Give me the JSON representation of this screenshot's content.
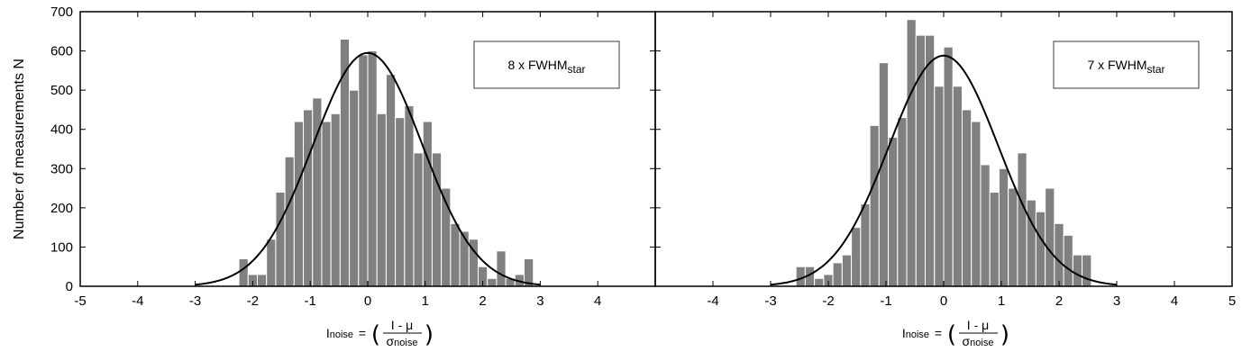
{
  "chart_data": [
    {
      "type": "bar",
      "panel": "left",
      "xlim": [
        -5,
        5
      ],
      "ylim": [
        0,
        700
      ],
      "x_ticks": [
        -5,
        -4,
        -3,
        -2,
        -1,
        0,
        1,
        2,
        3,
        4
      ],
      "y_ticks": [
        0,
        100,
        200,
        300,
        400,
        500,
        600,
        700
      ],
      "ylabel": "Number of measurements N",
      "xlabel": {
        "main": "I",
        "sub": "noise",
        "eq": "=",
        "num": "I - μ",
        "den_main": "σ",
        "den_sub": "noise"
      },
      "legend": {
        "text": "8 x FWHM",
        "sub": "star",
        "placement": "top-right"
      },
      "bin_width": 0.16,
      "bins": [
        {
          "x": -2.24,
          "y": 70
        },
        {
          "x": -2.08,
          "y": 30
        },
        {
          "x": -1.92,
          "y": 30
        },
        {
          "x": -1.76,
          "y": 120
        },
        {
          "x": -1.6,
          "y": 240
        },
        {
          "x": -1.44,
          "y": 330
        },
        {
          "x": -1.28,
          "y": 420
        },
        {
          "x": -1.12,
          "y": 450
        },
        {
          "x": -0.96,
          "y": 480
        },
        {
          "x": -0.8,
          "y": 420
        },
        {
          "x": -0.64,
          "y": 440
        },
        {
          "x": -0.48,
          "y": 630
        },
        {
          "x": -0.32,
          "y": 500
        },
        {
          "x": -0.16,
          "y": 590
        },
        {
          "x": 0.0,
          "y": 600
        },
        {
          "x": 0.16,
          "y": 440
        },
        {
          "x": 0.32,
          "y": 540
        },
        {
          "x": 0.48,
          "y": 430
        },
        {
          "x": 0.64,
          "y": 460
        },
        {
          "x": 0.8,
          "y": 340
        },
        {
          "x": 0.96,
          "y": 420
        },
        {
          "x": 1.12,
          "y": 340
        },
        {
          "x": 1.28,
          "y": 250
        },
        {
          "x": 1.44,
          "y": 160
        },
        {
          "x": 1.6,
          "y": 140
        },
        {
          "x": 1.76,
          "y": 120
        },
        {
          "x": 1.92,
          "y": 50
        },
        {
          "x": 2.08,
          "y": 20
        },
        {
          "x": 2.24,
          "y": 90
        },
        {
          "x": 2.4,
          "y": 20
        },
        {
          "x": 2.56,
          "y": 30
        },
        {
          "x": 2.72,
          "y": 70
        }
      ],
      "gaussian": {
        "amplitude": 595,
        "mean": 0.0,
        "sigma": 0.95,
        "x_range": [
          -3.0,
          3.0
        ]
      }
    },
    {
      "type": "bar",
      "panel": "right",
      "xlim": [
        -5,
        5
      ],
      "ylim": [
        0,
        700
      ],
      "x_ticks": [
        -4,
        -3,
        -2,
        -1,
        0,
        1,
        2,
        3,
        4,
        5
      ],
      "y_ticks": [
        0,
        100,
        200,
        300,
        400,
        500,
        600,
        700
      ],
      "xlabel": {
        "main": "I",
        "sub": "noise",
        "eq": "=",
        "num": "I - μ",
        "den_main": "σ",
        "den_sub": "noise"
      },
      "legend": {
        "text": "7 x FWHM",
        "sub": "star",
        "placement": "top-right"
      },
      "bin_width": 0.16,
      "bins": [
        {
          "x": -2.56,
          "y": 50
        },
        {
          "x": -2.4,
          "y": 50
        },
        {
          "x": -2.24,
          "y": 20
        },
        {
          "x": -2.08,
          "y": 30
        },
        {
          "x": -1.92,
          "y": 60
        },
        {
          "x": -1.76,
          "y": 80
        },
        {
          "x": -1.6,
          "y": 150
        },
        {
          "x": -1.44,
          "y": 210
        },
        {
          "x": -1.28,
          "y": 410
        },
        {
          "x": -1.12,
          "y": 570
        },
        {
          "x": -0.96,
          "y": 380
        },
        {
          "x": -0.8,
          "y": 430
        },
        {
          "x": -0.64,
          "y": 680
        },
        {
          "x": -0.48,
          "y": 640
        },
        {
          "x": -0.32,
          "y": 640
        },
        {
          "x": -0.16,
          "y": 510
        },
        {
          "x": 0.0,
          "y": 610
        },
        {
          "x": 0.16,
          "y": 510
        },
        {
          "x": 0.32,
          "y": 450
        },
        {
          "x": 0.48,
          "y": 420
        },
        {
          "x": 0.64,
          "y": 310
        },
        {
          "x": 0.8,
          "y": 240
        },
        {
          "x": 0.96,
          "y": 300
        },
        {
          "x": 1.12,
          "y": 250
        },
        {
          "x": 1.28,
          "y": 340
        },
        {
          "x": 1.44,
          "y": 220
        },
        {
          "x": 1.6,
          "y": 190
        },
        {
          "x": 1.76,
          "y": 250
        },
        {
          "x": 1.92,
          "y": 160
        },
        {
          "x": 2.08,
          "y": 130
        },
        {
          "x": 2.24,
          "y": 80
        },
        {
          "x": 2.4,
          "y": 80
        }
      ],
      "gaussian": {
        "amplitude": 588,
        "mean": 0.0,
        "sigma": 0.95,
        "x_range": [
          -3.0,
          3.0
        ]
      }
    }
  ],
  "colors": {
    "bar_fill": "#808080",
    "bar_edge": "#ffffff",
    "curve": "#000000",
    "axes": "#000000",
    "background": "#ffffff"
  }
}
